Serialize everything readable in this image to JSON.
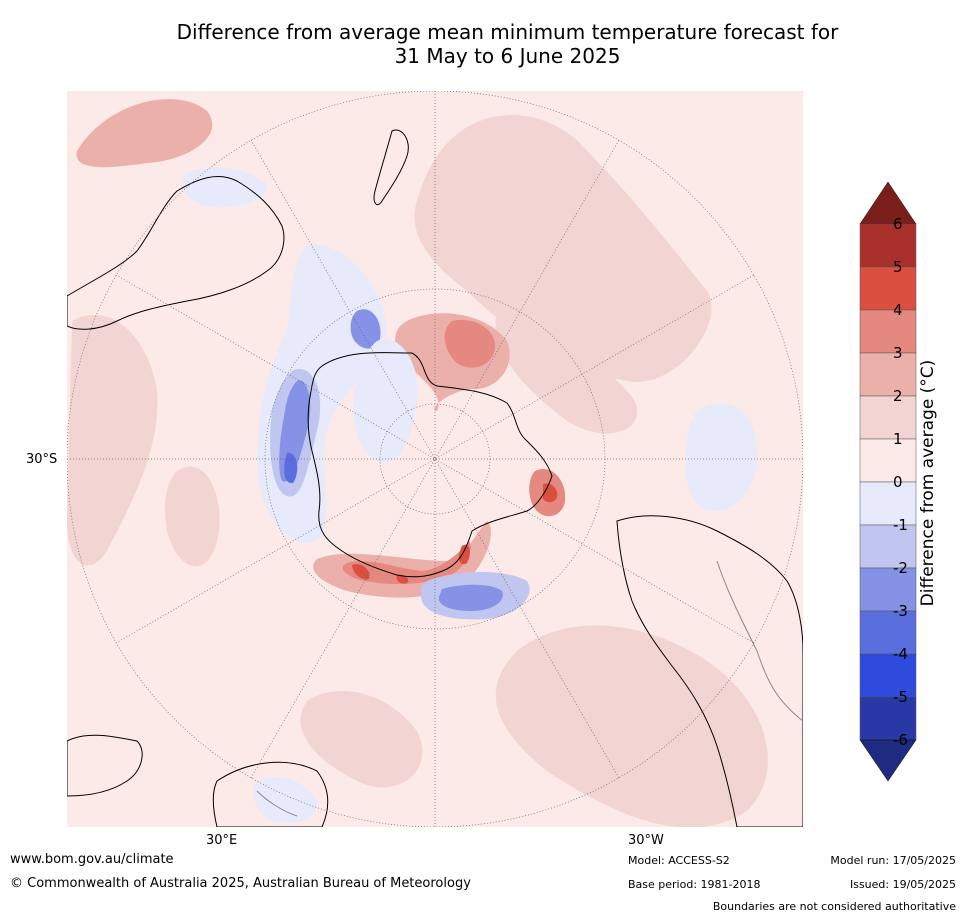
{
  "title_line1": "Difference from average mean minimum temperature forecast for",
  "title_line2": "31 May to 6 June 2025",
  "map": {
    "lat_label": "30°S",
    "lon_left_label": "30°E",
    "lon_right_label": "30°W",
    "colors": {
      "ocean_background": "#fbeae8",
      "anomaly_0_1": "#fbeae8",
      "anomaly_1_2": "#f2d5d2",
      "anomaly_2_3": "#ebb0aa",
      "anomaly_3_4": "#e48880",
      "anomaly_4_5": "#da4f40",
      "anomaly_5_6": "#a9302b",
      "anomaly_gt_6": "#7a1f1a",
      "anomaly_0_m1": "#e7eafa",
      "anomaly_m1_m2": "#c0c6f0",
      "anomaly_m2_m3": "#8592e6",
      "anomaly_m3_m4": "#5a6ede",
      "anomaly_m4_m5": "#2f4bdc",
      "anomaly_m5_m6": "#2838a4",
      "anomaly_lt_m6": "#1f2b80",
      "coastline": "#000000",
      "borders": "#888888",
      "gridlines": "#666666"
    }
  },
  "colorbar": {
    "label": "Difference from average (°C)",
    "ticks": [
      "6",
      "5",
      "4",
      "3",
      "2",
      "1",
      "0",
      "-1",
      "-2",
      "-3",
      "-4",
      "-5",
      "-6"
    ],
    "colors": [
      "#a9302b",
      "#da4f40",
      "#e48880",
      "#ebb0aa",
      "#f2d5d2",
      "#fbeae8",
      "#e7eafa",
      "#c0c6f0",
      "#8592e6",
      "#5a6ede",
      "#2f4bdc",
      "#2838a4"
    ],
    "top_extend_color": "#7a1f1a",
    "bottom_extend_color": "#1f2b80"
  },
  "footer": {
    "website": "www.bom.gov.au/climate",
    "copyright": "© Commonwealth of Australia 2025, Australian Bureau of Meteorology",
    "model": "Model: ACCESS-S2",
    "base_period": "Base period: 1981-2018",
    "model_run": "Model run: 17/05/2025",
    "issued": "Issued: 19/05/2025",
    "disclaimer": "Boundaries are not considered authoritative"
  }
}
